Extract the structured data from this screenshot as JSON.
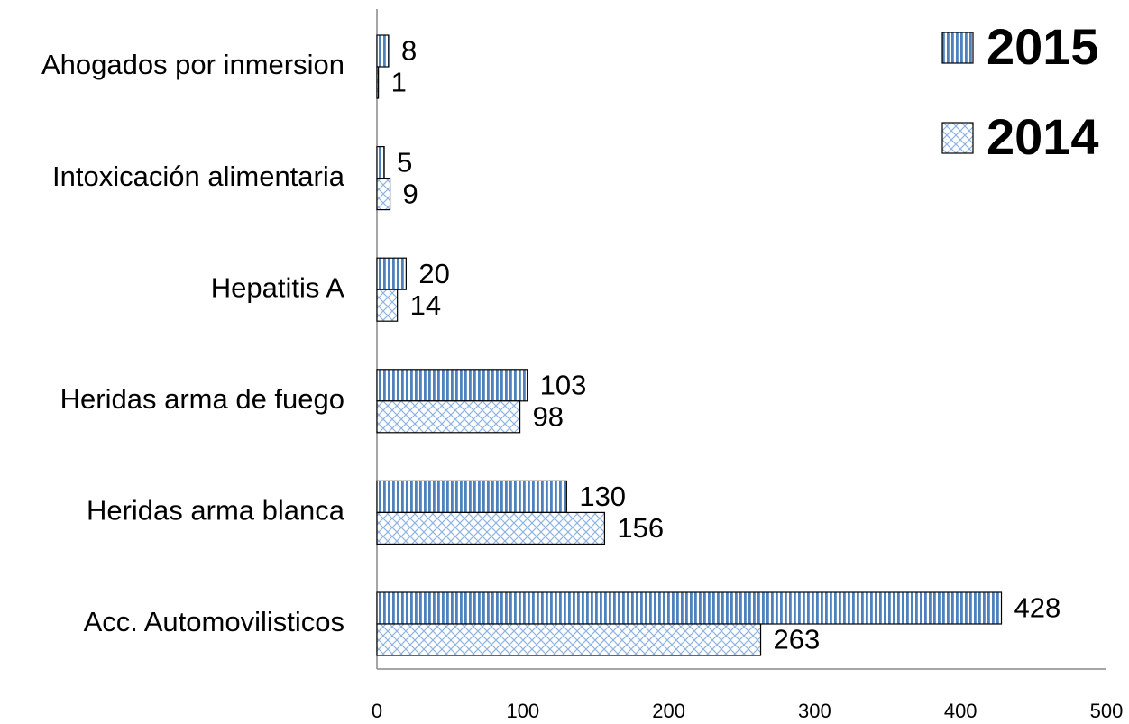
{
  "chart_data": {
    "type": "barh",
    "categories": [
      "Ahogados por inmersion",
      "Intoxicación alimentaria",
      "Hepatitis A",
      "Heridas arma de fuego",
      "Heridas arma blanca",
      "Acc. Automovilisticos"
    ],
    "series": [
      {
        "name": "2015",
        "color": "#4f81bd",
        "values": [
          8,
          5,
          20,
          103,
          130,
          428
        ]
      },
      {
        "name": "2014",
        "color": "#8eb4e3",
        "values": [
          1,
          9,
          14,
          98,
          156,
          263
        ]
      }
    ],
    "xlim": [
      0,
      500
    ],
    "xticks": [
      0,
      100,
      200,
      300,
      400,
      500
    ]
  }
}
